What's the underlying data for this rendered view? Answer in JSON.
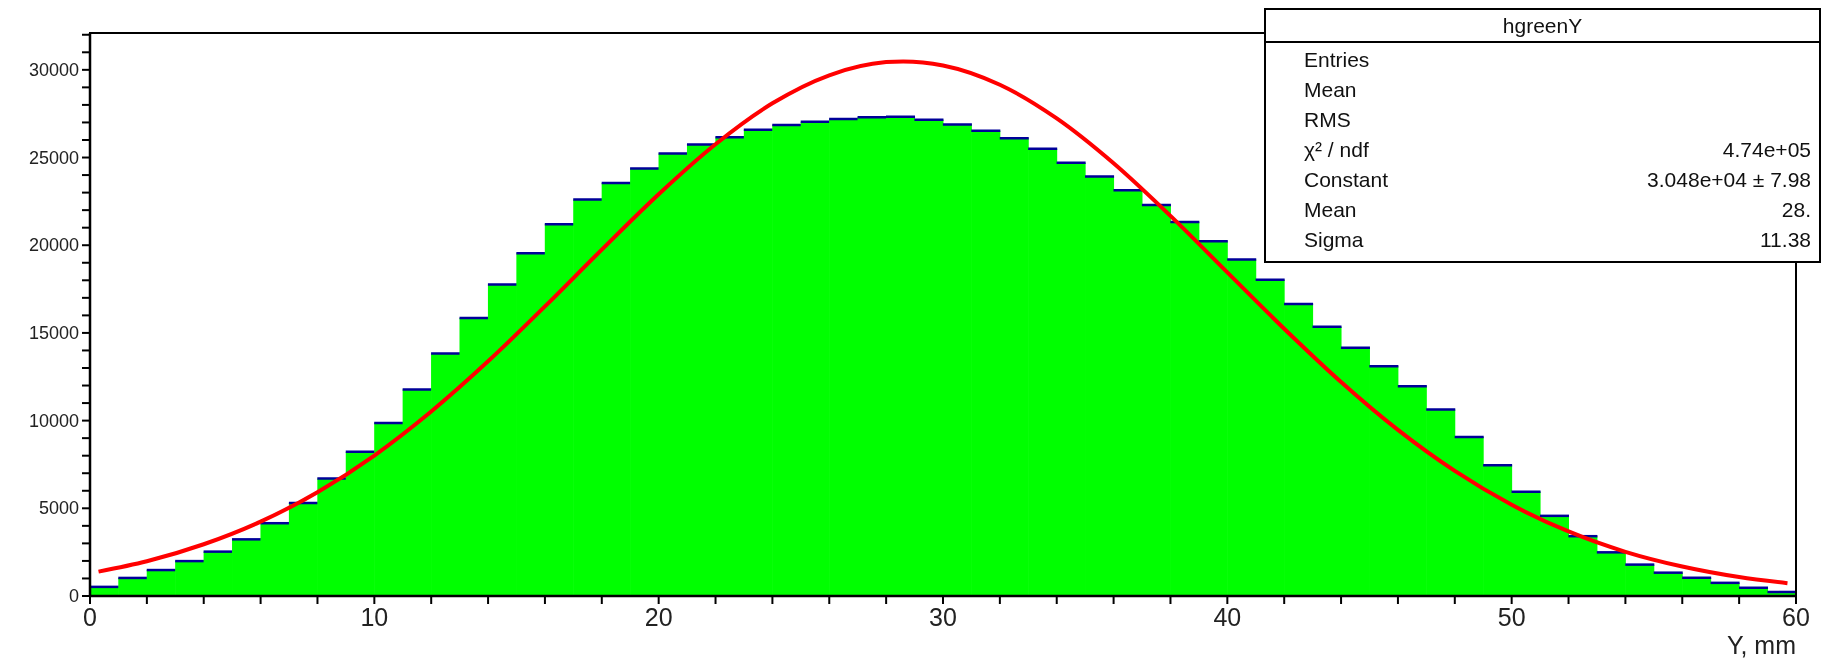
{
  "chart_data": {
    "type": "histogram",
    "xlabel": "Y, mm",
    "bins": [
      0,
      1,
      2,
      3,
      4,
      5,
      6,
      7,
      8,
      9,
      10,
      11,
      12,
      13,
      14,
      15,
      16,
      17,
      18,
      19,
      20,
      21,
      22,
      23,
      24,
      25,
      26,
      27,
      28,
      29,
      30,
      31,
      32,
      33,
      34,
      35,
      36,
      37,
      38,
      39,
      40,
      41,
      42,
      43,
      44,
      45,
      46,
      47,
      48,
      49,
      50,
      51,
      52,
      53,
      54,
      55,
      56,
      57,
      58,
      59,
      60
    ],
    "series": [
      {
        "color": "#00ff00",
        "values": [
          520,
          1030,
          1480,
          1990,
          2530,
          3230,
          4150,
          5300,
          6700,
          8220,
          9870,
          11780,
          13820,
          15850,
          17760,
          19540,
          21200,
          22600,
          23550,
          24380,
          25230,
          25740,
          26150,
          26590,
          26860,
          27040,
          27200,
          27300,
          27320,
          27160,
          26890,
          26530,
          26100,
          25500,
          24700,
          23920,
          23140,
          22290,
          21320,
          20220,
          19190,
          18030,
          16650,
          15350,
          14150,
          13100,
          11960,
          10630,
          9070,
          7450,
          5950,
          4570,
          3410,
          2490,
          1790,
          1330,
          1040,
          750,
          470,
          230
        ]
      },
      {
        "type": "line",
        "color": "#ff0000",
        "x": [
          0.3,
          2,
          4,
          6,
          8,
          10,
          12,
          14,
          16,
          18,
          20,
          22,
          24,
          26,
          28,
          28.6,
          30,
          32,
          34,
          36,
          38,
          40,
          42,
          44,
          46,
          48,
          50,
          52,
          54,
          56,
          58,
          59.7
        ],
        "values": [
          1390,
          1980,
          2950,
          4240,
          5920,
          8010,
          10520,
          13380,
          16510,
          19750,
          22910,
          25760,
          28090,
          29690,
          30440,
          30480,
          30250,
          29150,
          27230,
          24670,
          21670,
          18450,
          15240,
          12200,
          9470,
          7130,
          5200,
          3680,
          2520,
          1680,
          1080,
          730
        ]
      }
    ],
    "xlim": [
      0,
      60
    ],
    "xticks": [
      0,
      {
        "value": 2,
        "label": null
      },
      {
        "value": 4,
        "label": null
      },
      {
        "value": 6,
        "label": null
      },
      {
        "value": 8,
        "label": null
      },
      10,
      {
        "value": 12,
        "label": null
      },
      {
        "value": 14,
        "label": null
      },
      {
        "value": 16,
        "label": null
      },
      {
        "value": 18,
        "label": null
      },
      20,
      {
        "value": 22,
        "label": null
      },
      {
        "value": 24,
        "label": null
      },
      {
        "value": 26,
        "label": null
      },
      {
        "value": 28,
        "label": null
      },
      30,
      {
        "value": 32,
        "label": null
      },
      {
        "value": 34,
        "label": null
      },
      {
        "value": 36,
        "label": null
      },
      {
        "value": 38,
        "label": null
      },
      40,
      {
        "value": 42,
        "label": null
      },
      {
        "value": 44,
        "label": null
      },
      {
        "value": 46,
        "label": null
      },
      {
        "value": 48,
        "label": null
      },
      50,
      {
        "value": 52,
        "label": null
      },
      {
        "value": 54,
        "label": null
      },
      {
        "value": 56,
        "label": null
      },
      {
        "value": 58,
        "label": null
      },
      60
    ],
    "ylim": [
      0,
      32100
    ],
    "yticks": [
      0,
      {
        "value": 1000,
        "label": null
      },
      {
        "value": 2000,
        "label": null
      },
      {
        "value": 3000,
        "label": null
      },
      {
        "value": 4000,
        "label": null
      },
      5000,
      {
        "value": 6000,
        "label": null
      },
      {
        "value": 7000,
        "label": null
      },
      {
        "value": 8000,
        "label": null
      },
      {
        "value": 9000,
        "label": null
      },
      10000,
      {
        "value": 11000,
        "label": null
      },
      {
        "value": 12000,
        "label": null
      },
      {
        "value": 13000,
        "label": null
      },
      {
        "value": 14000,
        "label": null
      },
      15000,
      {
        "value": 16000,
        "label": null
      },
      {
        "value": 17000,
        "label": null
      },
      {
        "value": 18000,
        "label": null
      },
      {
        "value": 19000,
        "label": null
      },
      20000,
      {
        "value": 21000,
        "label": null
      },
      {
        "value": 22000,
        "label": null
      },
      {
        "value": 23000,
        "label": null
      },
      {
        "value": 24000,
        "label": null
      },
      25000,
      {
        "value": 26000,
        "label": null
      },
      {
        "value": 27000,
        "label": null
      },
      {
        "value": 28000,
        "label": null
      },
      {
        "value": 29000,
        "label": null
      },
      30000,
      {
        "value": 31000,
        "label": null
      },
      {
        "value": 32000,
        "label": null
      }
    ],
    "annotations": [
      "hgreenY",
      "Entries",
      "Mean",
      "RMS",
      "χ² / ndf",
      "4.74e+05",
      "Constant",
      "3.048e+04 ± 7.98",
      "Mean",
      "28.",
      "Sigma",
      "11.38"
    ]
  }
}
